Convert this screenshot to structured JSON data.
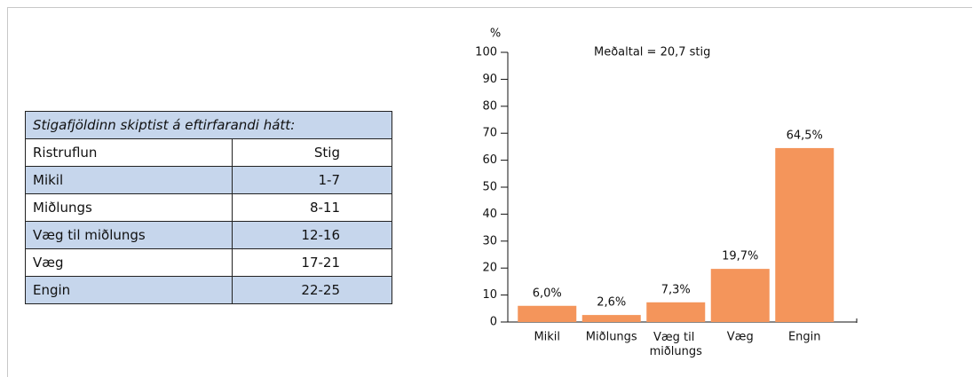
{
  "table": {
    "title": "Stigafjöldinn skiptist á eftirfarandi hátt:",
    "header": [
      "Ristruflun",
      "Stig"
    ],
    "rows": [
      [
        "Mikil",
        "1-7"
      ],
      [
        "Miðlungs",
        "8-11"
      ],
      [
        "Væg til miðlungs",
        "12-16"
      ],
      [
        "Væg",
        "17-21"
      ],
      [
        "Engin",
        "22-25"
      ]
    ]
  },
  "chart_data": {
    "type": "bar",
    "ylabel": "%",
    "annotation": "Meðaltal = 20,7 stig",
    "categories": [
      "Mikil",
      "Miðlungs",
      "Væg til miðlungs",
      "Væg",
      "Engin"
    ],
    "values": [
      6.0,
      2.6,
      7.3,
      19.7,
      64.5
    ],
    "value_labels": [
      "6,0%",
      "2,6%",
      "7,3%",
      "19,7%",
      "64,5%"
    ],
    "color": "#f4955b",
    "ylim": [
      0,
      100
    ],
    "yticks": [
      0,
      10,
      20,
      30,
      40,
      50,
      60,
      70,
      80,
      90,
      100
    ],
    "grid": false
  }
}
